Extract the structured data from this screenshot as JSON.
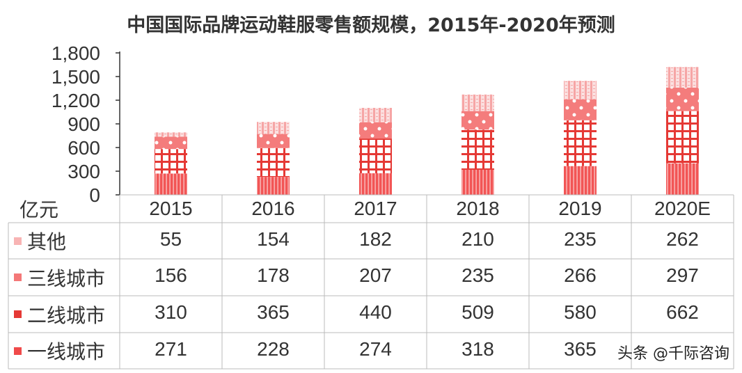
{
  "chart_data": {
    "type": "bar",
    "stacked": true,
    "title": "中国国际品牌运动鞋服零售额规模，2015年-2020年预测",
    "ylabel": "亿元",
    "ylim": [
      0,
      1800
    ],
    "yticks": [
      "0",
      "300",
      "600",
      "900",
      "1,200",
      "1,500",
      "1,800"
    ],
    "ytick_values": [
      0,
      300,
      600,
      900,
      1200,
      1500,
      1800
    ],
    "categories": [
      "2015",
      "2016",
      "2017",
      "2018",
      "2019",
      "2020E"
    ],
    "series": [
      {
        "name": "一线城市",
        "values": [
          271,
          228,
          274,
          318,
          365,
          400
        ],
        "display": [
          "271",
          "228",
          "274",
          "318",
          "365",
          ""
        ],
        "color": "#f04a4a"
      },
      {
        "name": "二线城市",
        "values": [
          310,
          365,
          440,
          509,
          580,
          662
        ],
        "display": [
          "310",
          "365",
          "440",
          "509",
          "580",
          "662"
        ],
        "color": "#e53935"
      },
      {
        "name": "三线城市",
        "values": [
          156,
          178,
          207,
          235,
          266,
          297
        ],
        "display": [
          "156",
          "178",
          "207",
          "235",
          "266",
          "297"
        ],
        "color": "#f47878"
      },
      {
        "name": "其他",
        "values": [
          55,
          154,
          182,
          210,
          235,
          262
        ],
        "display": [
          "55",
          "154",
          "182",
          "210",
          "235",
          "262"
        ],
        "color": "#f8b4b4"
      }
    ],
    "legend": "table-left",
    "grid": false
  },
  "watermark": "头条 @千际咨询"
}
